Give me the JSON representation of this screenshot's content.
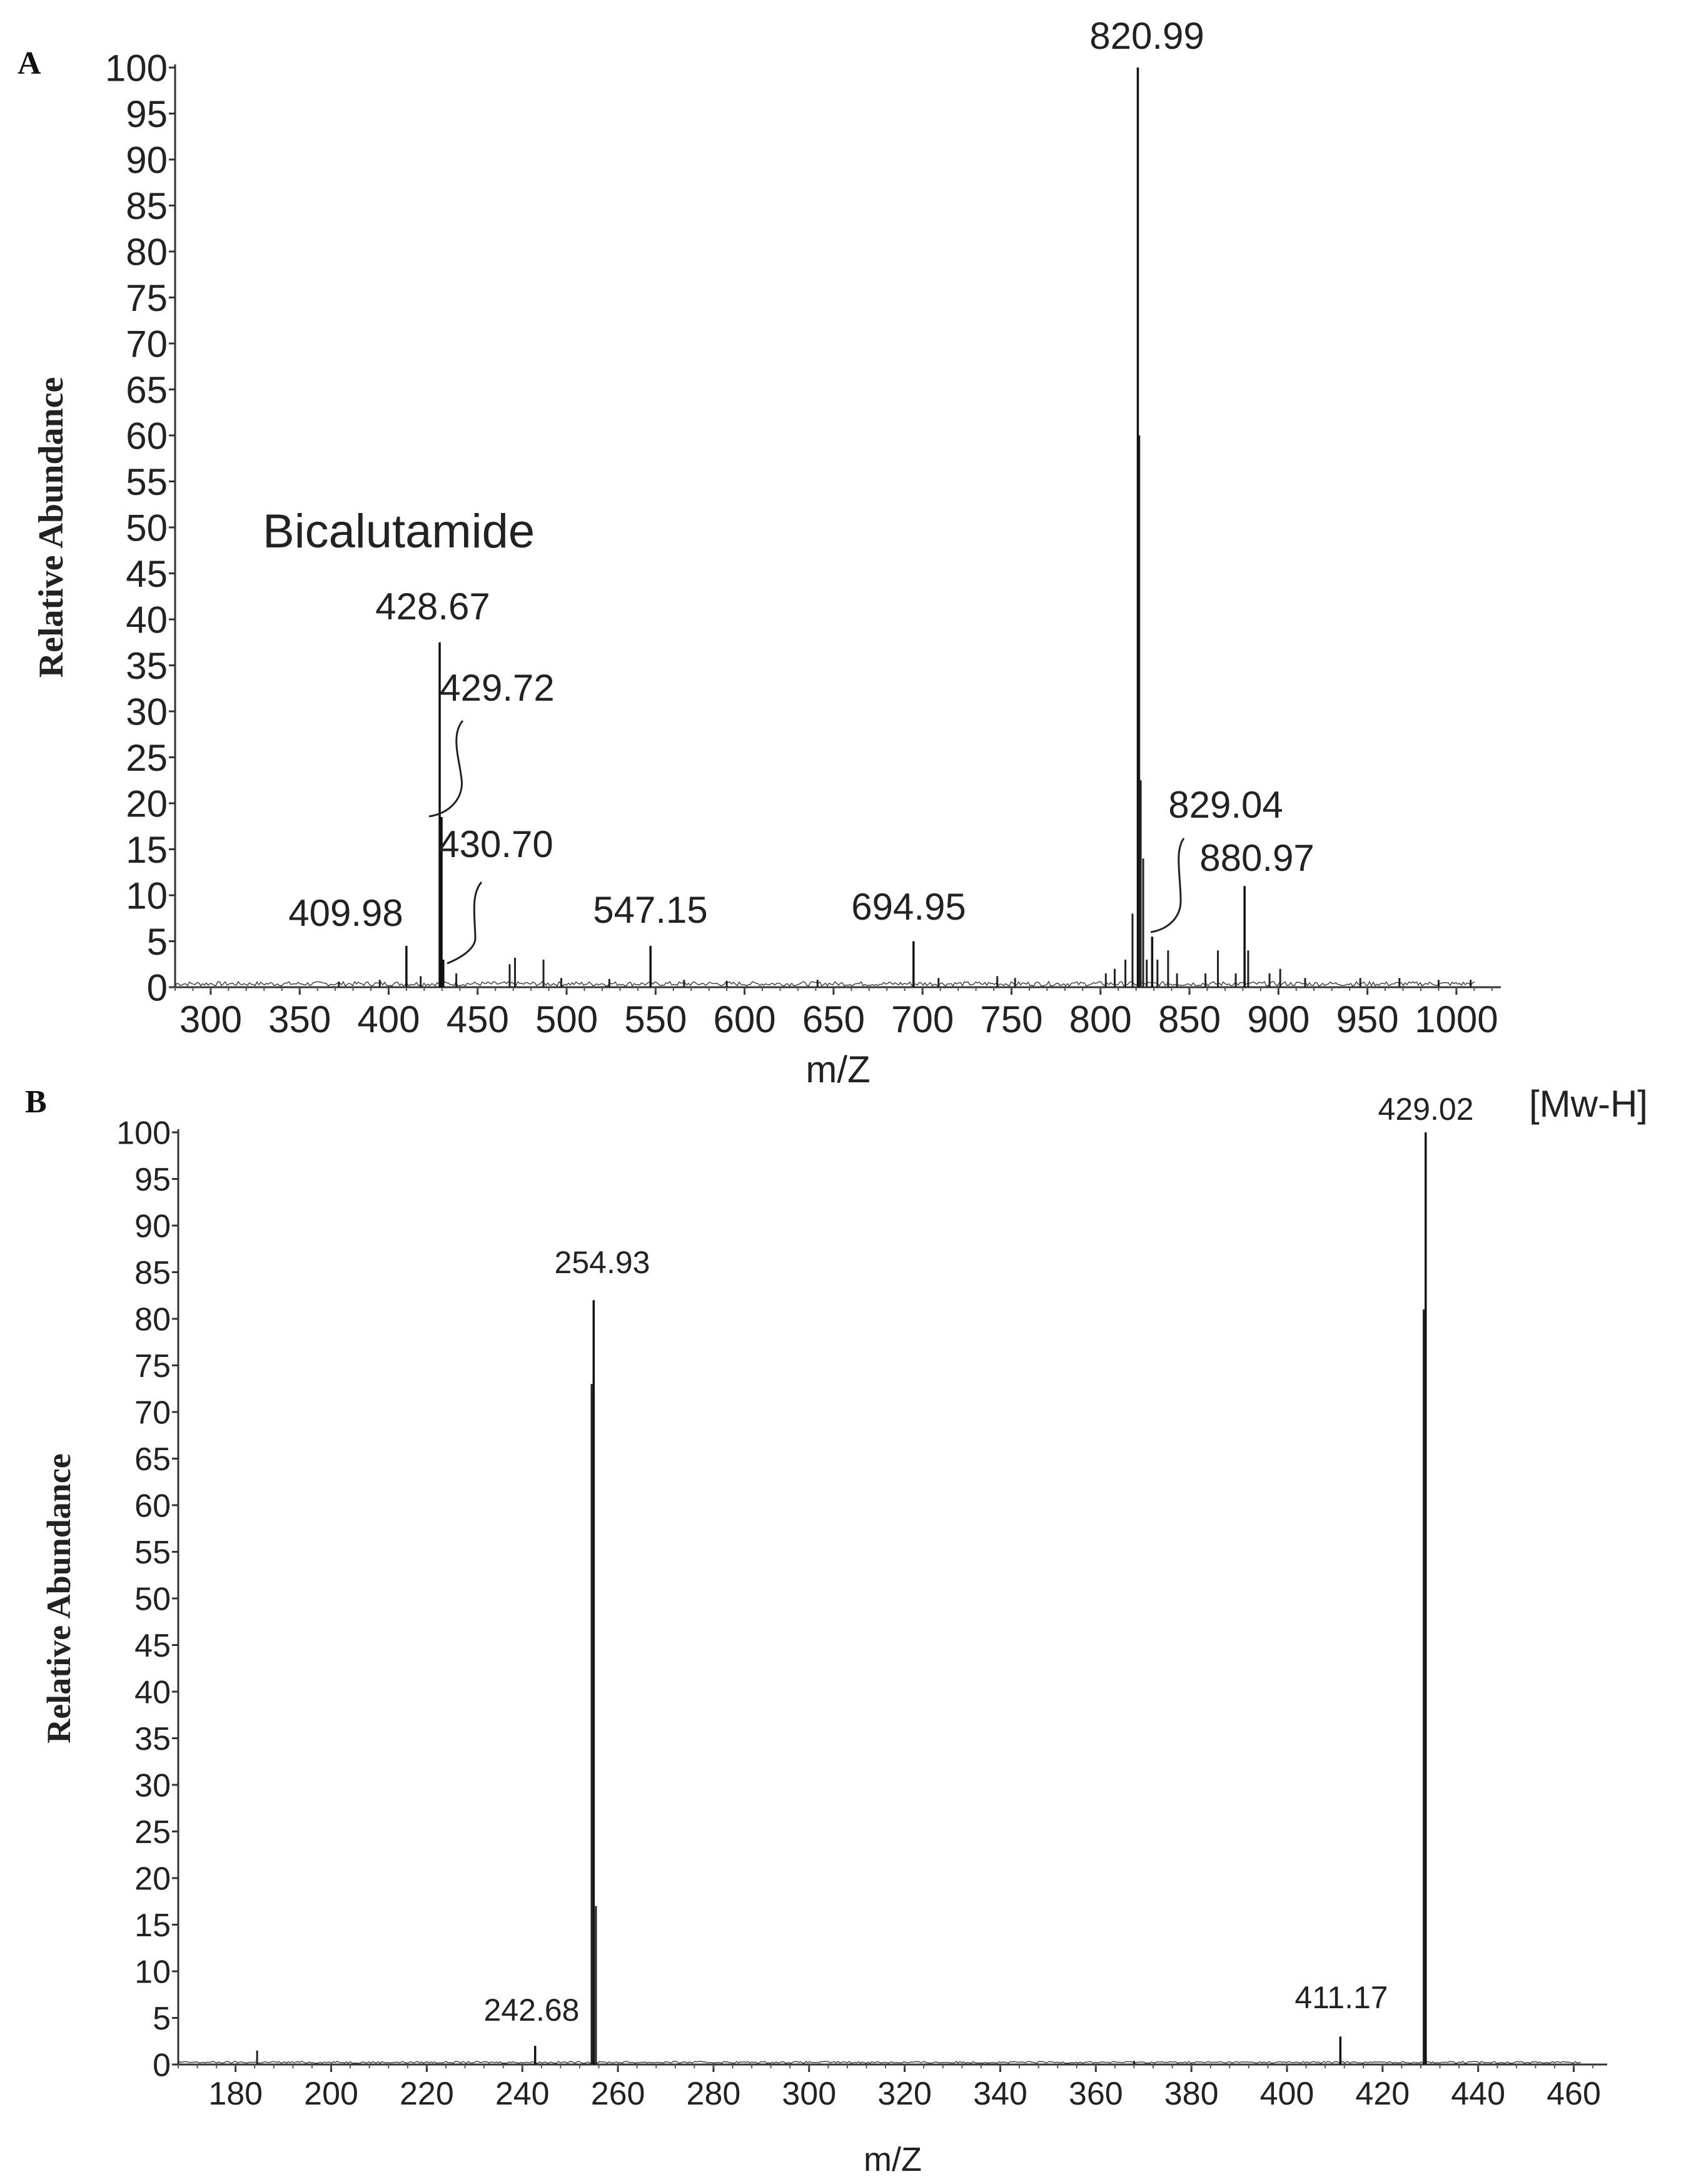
{
  "chart_data": [
    {
      "panel": "A",
      "type": "line",
      "xlabel": "m/Z",
      "ylabel": "Relative Abundance",
      "annotation": "Bicalutamide",
      "xlim": [
        280,
        1025
      ],
      "ylim": [
        0,
        100
      ],
      "xticks": [
        300,
        350,
        400,
        450,
        500,
        550,
        600,
        650,
        700,
        750,
        800,
        850,
        900,
        950,
        1000
      ],
      "yticks": [
        0,
        5,
        10,
        15,
        20,
        25,
        30,
        35,
        40,
        45,
        50,
        55,
        60,
        65,
        70,
        75,
        80,
        85,
        90,
        95,
        100
      ],
      "grid": false,
      "peaks": [
        {
          "x": 409.98,
          "y": 4.5,
          "label": "409.98"
        },
        {
          "x": 428.67,
          "y": 37.5,
          "label": "428.67"
        },
        {
          "x": 429.72,
          "y": 18.5,
          "label": "429.72"
        },
        {
          "x": 430.7,
          "y": 3.0,
          "label": "430.70"
        },
        {
          "x": 547.15,
          "y": 4.5,
          "label": "547.15"
        },
        {
          "x": 694.95,
          "y": 5.0,
          "label": "694.95"
        },
        {
          "x": 820.99,
          "y": 100,
          "label": "820.99"
        },
        {
          "x": 829.04,
          "y": 5.5,
          "label": "829.04"
        },
        {
          "x": 880.97,
          "y": 11.0,
          "label": "880.97"
        }
      ],
      "minor_peaks": [
        {
          "x": 372,
          "y": 0.6
        },
        {
          "x": 395,
          "y": 0.8
        },
        {
          "x": 418,
          "y": 1.2
        },
        {
          "x": 438,
          "y": 1.5
        },
        {
          "x": 468,
          "y": 2.5
        },
        {
          "x": 471,
          "y": 3.2
        },
        {
          "x": 487,
          "y": 3.0
        },
        {
          "x": 497,
          "y": 1.0
        },
        {
          "x": 524,
          "y": 0.9
        },
        {
          "x": 566,
          "y": 0.8
        },
        {
          "x": 590,
          "y": 0.7
        },
        {
          "x": 641,
          "y": 0.8
        },
        {
          "x": 709,
          "y": 1.0
        },
        {
          "x": 742,
          "y": 1.2
        },
        {
          "x": 752,
          "y": 1.0
        },
        {
          "x": 803,
          "y": 1.5
        },
        {
          "x": 808,
          "y": 2.0
        },
        {
          "x": 814,
          "y": 3.0
        },
        {
          "x": 818,
          "y": 8.0
        },
        {
          "x": 821.8,
          "y": 60
        },
        {
          "x": 822.6,
          "y": 22.5
        },
        {
          "x": 824,
          "y": 14.0
        },
        {
          "x": 826,
          "y": 3.0
        },
        {
          "x": 832,
          "y": 3.0
        },
        {
          "x": 838,
          "y": 4.0
        },
        {
          "x": 843,
          "y": 1.5
        },
        {
          "x": 859,
          "y": 1.5
        },
        {
          "x": 866,
          "y": 4.0
        },
        {
          "x": 876,
          "y": 1.5
        },
        {
          "x": 883,
          "y": 4.0
        },
        {
          "x": 895,
          "y": 1.5
        },
        {
          "x": 901,
          "y": 2.0
        },
        {
          "x": 915,
          "y": 1.0
        },
        {
          "x": 946,
          "y": 1.0
        },
        {
          "x": 968,
          "y": 1.0
        },
        {
          "x": 990,
          "y": 0.8
        },
        {
          "x": 1008,
          "y": 0.8
        }
      ]
    },
    {
      "panel": "B",
      "type": "line",
      "xlabel": "m/Z",
      "ylabel": "Relative Abundance",
      "annotation": "[Mw-H]",
      "xlim": [
        168,
        467
      ],
      "ylim": [
        0,
        100
      ],
      "xticks": [
        180,
        200,
        220,
        240,
        260,
        280,
        300,
        320,
        340,
        360,
        380,
        400,
        420,
        440,
        460
      ],
      "yticks": [
        0,
        5,
        10,
        15,
        20,
        25,
        30,
        35,
        40,
        45,
        50,
        55,
        60,
        65,
        70,
        75,
        80,
        85,
        90,
        95,
        100
      ],
      "grid": false,
      "peaks": [
        {
          "x": 242.68,
          "y": 2.0,
          "label": "242.68"
        },
        {
          "x": 254.93,
          "y": 82,
          "label": "254.93"
        },
        {
          "x": 411.17,
          "y": 3.0,
          "label": "411.17"
        },
        {
          "x": 429.02,
          "y": 100,
          "label": "429.02"
        }
      ],
      "minor_peaks": [
        {
          "x": 184.5,
          "y": 1.5
        },
        {
          "x": 255.4,
          "y": 17
        },
        {
          "x": 254.5,
          "y": 73
        },
        {
          "x": 428.6,
          "y": 81
        },
        {
          "x": 368,
          "y": 0.4
        }
      ]
    }
  ]
}
